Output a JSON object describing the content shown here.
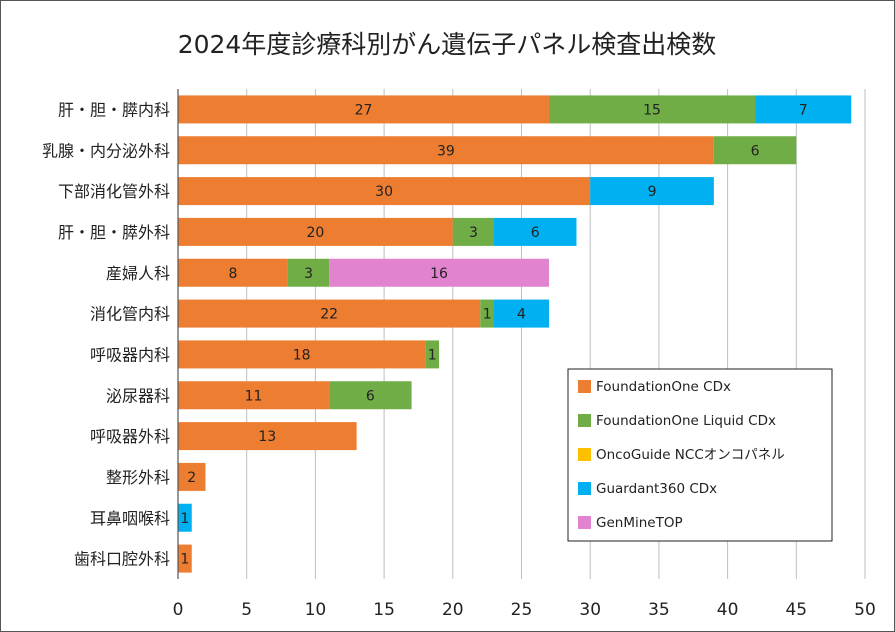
{
  "chart_data": {
    "type": "bar",
    "orientation": "horizontal",
    "stacked": true,
    "title": "2024年度診療科別がん遺伝子パネル検査出検数",
    "xlabel": "",
    "ylabel": "",
    "xlim": [
      0,
      50
    ],
    "xticks": [
      "0",
      "5",
      "10",
      "15",
      "20",
      "25",
      "30",
      "35",
      "40",
      "45",
      "50"
    ],
    "grid": "vertical",
    "legend_position": "bottom-right",
    "categories": [
      "肝・胆・膵内科",
      "乳腺・内分泌外科",
      "下部消化管外科",
      "肝・胆・膵外科",
      "産婦人科",
      "消化管内科",
      "呼吸器内科",
      "泌尿器科",
      "呼吸器外科",
      "整形外科",
      "耳鼻咽喉科",
      "歯科口腔外科"
    ],
    "series": [
      {
        "name": "FoundationOne CDx",
        "color": "#ED7D31",
        "values": [
          27,
          39,
          30,
          20,
          8,
          22,
          18,
          11,
          13,
          2,
          0,
          1
        ]
      },
      {
        "name": "FoundationOne Liquid CDx",
        "color": "#70AD47",
        "values": [
          15,
          6,
          0,
          3,
          3,
          1,
          1,
          6,
          0,
          0,
          0,
          0
        ]
      },
      {
        "name": "OncoGuide NCCオンコパネル",
        "color": "#FFC000",
        "values": [
          0,
          0,
          0,
          0,
          0,
          0,
          0,
          0,
          0,
          0,
          0,
          0
        ]
      },
      {
        "name": "Guardant360 CDx",
        "color": "#00B0F0",
        "values": [
          7,
          0,
          9,
          6,
          0,
          4,
          0,
          0,
          0,
          0,
          1,
          0
        ]
      },
      {
        "name": "GenMineTOP",
        "color": "#E183CF",
        "values": [
          0,
          0,
          0,
          0,
          16,
          0,
          0,
          0,
          0,
          0,
          0,
          0
        ]
      }
    ]
  }
}
